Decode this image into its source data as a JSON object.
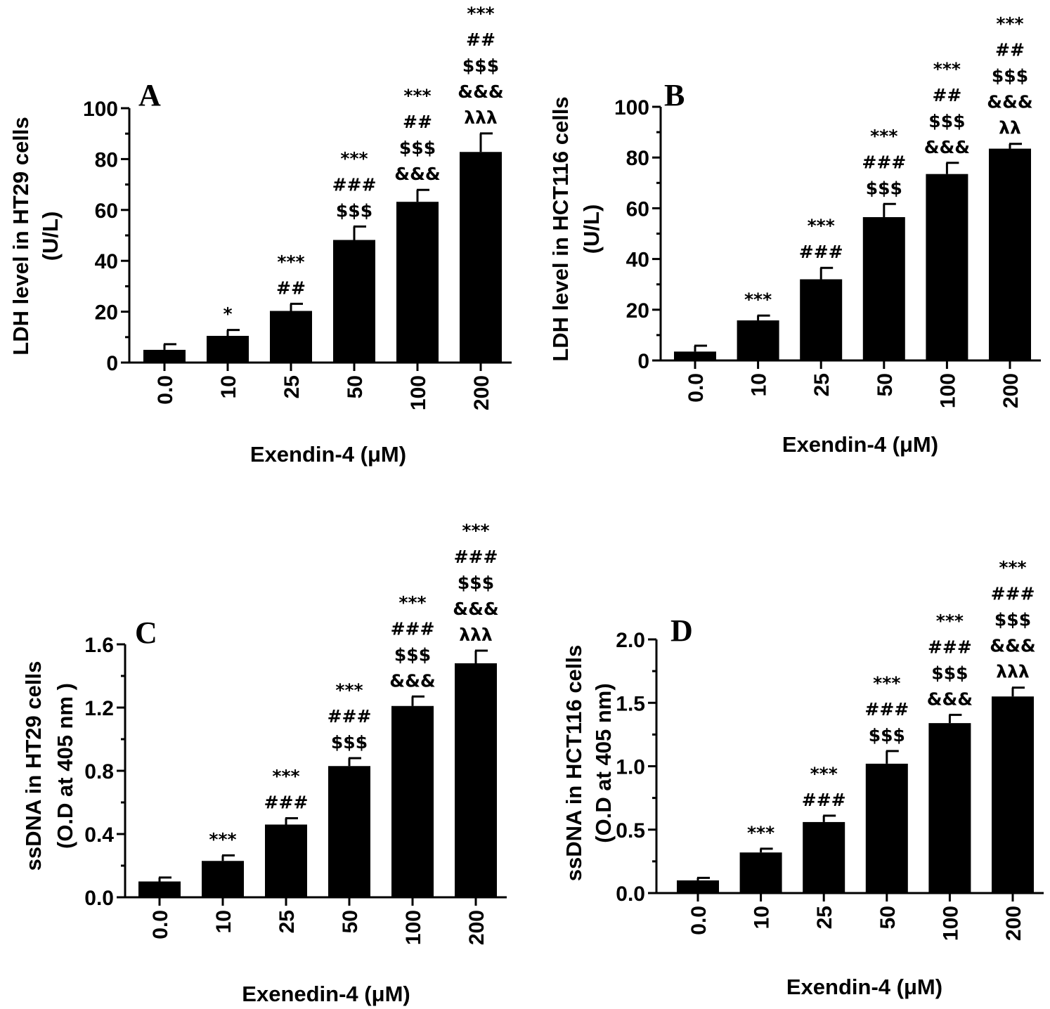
{
  "chart_data": [
    {
      "type": "bar",
      "panel": "A",
      "categories": [
        "0.0",
        "10",
        "25",
        "50",
        "100",
        "200"
      ],
      "values": [
        5,
        10.5,
        20.3,
        48.2,
        63.2,
        82.8
      ],
      "errors": [
        2.2,
        2.3,
        2.8,
        5.3,
        4.7,
        7.3
      ],
      "ylim": [
        0,
        100
      ],
      "yticks": [
        "0",
        "20",
        "40",
        "60",
        "80",
        "100"
      ],
      "ylabel": [
        "LDH level in HT29 cells",
        "(U/L)"
      ],
      "xlabel": "Exendin-4 (μM)",
      "significance": [
        [],
        [
          "*"
        ],
        [
          "***",
          "##"
        ],
        [
          "***",
          "###",
          "$$$"
        ],
        [
          "***",
          "##",
          "$$$",
          "&&&"
        ],
        [
          "***",
          "##",
          "$$$",
          "&&&",
          "λλλ"
        ]
      ]
    },
    {
      "type": "bar",
      "panel": "B",
      "categories": [
        "0.0",
        "10",
        "25",
        "50",
        "100",
        "200"
      ],
      "values": [
        3.5,
        15.8,
        32,
        56.5,
        73.5,
        83.5
      ],
      "errors": [
        2.3,
        1.9,
        4.5,
        5.2,
        4.4,
        1.9
      ],
      "ylim": [
        0,
        100
      ],
      "yticks": [
        "0",
        "20",
        "40",
        "60",
        "80",
        "100"
      ],
      "ylabel": [
        "LDH level in HCT116 cells",
        "(U/L)"
      ],
      "xlabel": "Exendin-4 (μM)",
      "significance": [
        [],
        [
          "***"
        ],
        [
          "***",
          "###"
        ],
        [
          "***",
          "###",
          "$$$"
        ],
        [
          "***",
          "##",
          "$$$",
          "&&&"
        ],
        [
          "***",
          "##",
          "$$$",
          "&&&",
          "λλ"
        ]
      ]
    },
    {
      "type": "bar",
      "panel": "C",
      "categories": [
        "0.0",
        "10",
        "25",
        "50",
        "100",
        "200"
      ],
      "values": [
        0.1,
        0.23,
        0.46,
        0.83,
        1.21,
        1.48
      ],
      "errors": [
        0.025,
        0.035,
        0.04,
        0.05,
        0.06,
        0.08
      ],
      "ylim": [
        0,
        1.6
      ],
      "yticks": [
        "0.0",
        "0.4",
        "0.8",
        "1.2",
        "1.6"
      ],
      "ylabel": [
        "ssDNA in  HT29 cells",
        "(O.D at 405 nm )"
      ],
      "xlabel": "Exenedin-4 (μM)",
      "significance": [
        [],
        [
          "***"
        ],
        [
          "***",
          "###"
        ],
        [
          "***",
          "###",
          "$$$"
        ],
        [
          "***",
          "###",
          "$$$",
          "&&&"
        ],
        [
          "***",
          "###",
          "$$$",
          "&&&",
          "λλλ"
        ]
      ]
    },
    {
      "type": "bar",
      "panel": "D",
      "categories": [
        "0.0",
        "10",
        "25",
        "50",
        "100",
        "200"
      ],
      "values": [
        0.1,
        0.32,
        0.56,
        1.02,
        1.34,
        1.55
      ],
      "errors": [
        0.02,
        0.03,
        0.05,
        0.1,
        0.065,
        0.07
      ],
      "ylim": [
        0,
        2
      ],
      "yticks": [
        "0.0",
        "0.5",
        "1.0",
        "1.5",
        "2.0"
      ],
      "ylabel": [
        "ssDNA in HCT116 cells",
        "(O.D at 405 nm)"
      ],
      "xlabel": "Exendin-4 (μM)",
      "significance": [
        [],
        [
          "***"
        ],
        [
          "***",
          "###"
        ],
        [
          "***",
          "###",
          "$$$"
        ],
        [
          "***",
          "###",
          "$$$",
          "&&&"
        ],
        [
          "***",
          "###",
          "$$$",
          "&&&",
          "λλλ"
        ]
      ]
    }
  ]
}
